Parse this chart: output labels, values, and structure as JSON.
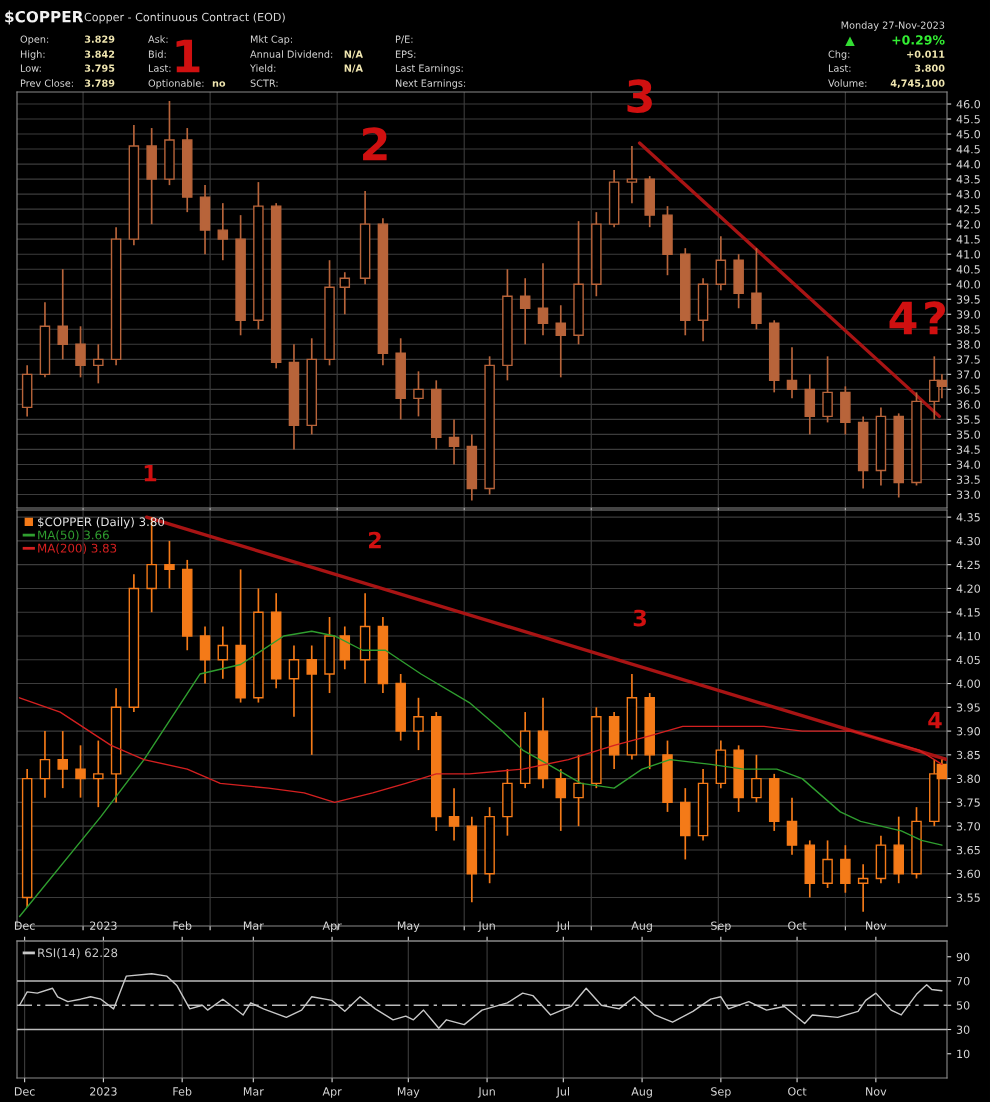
{
  "chart_data": [
    {
      "type": "other",
      "title": "$COPPER",
      "subtitle": "Copper - Continuous Contract (EOD)",
      "annotations": [
        "Open:",
        "3.829",
        "High:",
        "3.842",
        "Low:",
        "3.795",
        "Prev Close:",
        "3.789",
        "Ask:",
        "Bid:",
        "Last:",
        "Optionable:",
        "no",
        "Mkt Cap:",
        "Annual Dividend:",
        "N/A",
        "Yield:",
        "N/A",
        "SCTR:",
        "P/E:",
        "EPS:",
        "Last Earnings:",
        "Next Earnings:",
        "Monday 27-Nov-2023",
        "▲",
        "+0.29%",
        "Chg:",
        "+0.011",
        "Last:",
        "3.800",
        "Volume:",
        "4,745,100"
      ]
    },
    {
      "type": "candlestick",
      "xlim": [
        "2022-11-28",
        "2023-11-29"
      ],
      "ylim": [
        32.55,
        46.4
      ],
      "grid": true,
      "tick_labels": "y",
      "yticks": [
        {
          "value": 33.0,
          "label": "33.0"
        },
        {
          "value": 33.5,
          "label": "33.5"
        },
        {
          "value": 34.0,
          "label": "34.0"
        },
        {
          "value": 34.5,
          "label": "34.5"
        },
        {
          "value": 35.0,
          "label": "35.0"
        },
        {
          "value": 35.5,
          "label": "35.5"
        },
        {
          "value": 36.0,
          "label": "36.0"
        },
        {
          "value": 36.5,
          "label": "36.5"
        },
        {
          "value": 37.0,
          "label": "37.0"
        },
        {
          "value": 37.5,
          "label": "37.5"
        },
        {
          "value": 38.0,
          "label": "38.0"
        },
        {
          "value": 38.5,
          "label": "38.5"
        },
        {
          "value": 39.0,
          "label": "39.0"
        },
        {
          "value": 39.5,
          "label": "39.5"
        },
        {
          "value": 40.0,
          "label": "40.0"
        },
        {
          "value": 40.5,
          "label": "40.5"
        },
        {
          "value": 41.0,
          "label": "41.0"
        },
        {
          "value": 41.5,
          "label": "41.5"
        },
        {
          "value": 42.0,
          "label": "42.0"
        },
        {
          "value": 42.5,
          "label": "42.5"
        },
        {
          "value": 43.0,
          "label": "43.0"
        },
        {
          "value": 43.5,
          "label": "43.5"
        },
        {
          "value": 44.0,
          "label": "44.0"
        },
        {
          "value": 44.5,
          "label": "44.5"
        },
        {
          "value": 45.0,
          "label": "45.0"
        },
        {
          "value": 45.5,
          "label": "45.5"
        },
        {
          "value": 46.0,
          "label": "46.0"
        }
      ],
      "series": [
        {
          "type": "candlestick",
          "color": "#b8643a",
          "x": [
            "2022-12-02",
            "2022-12-09",
            "2022-12-16",
            "2022-12-23",
            "2022-12-30",
            "2023-01-06",
            "2023-01-13",
            "2023-01-20",
            "2023-01-27",
            "2023-02-03",
            "2023-02-10",
            "2023-02-17",
            "2023-02-24",
            "2023-03-03",
            "2023-03-10",
            "2023-03-17",
            "2023-03-24",
            "2023-03-31",
            "2023-04-06",
            "2023-04-14",
            "2023-04-21",
            "2023-04-28",
            "2023-05-05",
            "2023-05-12",
            "2023-05-19",
            "2023-05-26",
            "2023-06-02",
            "2023-06-09",
            "2023-06-16",
            "2023-06-23",
            "2023-06-30",
            "2023-07-07",
            "2023-07-14",
            "2023-07-21",
            "2023-07-28",
            "2023-08-04",
            "2023-08-11",
            "2023-08-18",
            "2023-08-25",
            "2023-09-01",
            "2023-09-08",
            "2023-09-15",
            "2023-09-22",
            "2023-09-29",
            "2023-10-06",
            "2023-10-13",
            "2023-10-20",
            "2023-10-27",
            "2023-11-03",
            "2023-11-10",
            "2023-11-17",
            "2023-11-24",
            "2023-11-27"
          ],
          "ohlc": [
            [
              35.9,
              37.3,
              35.6,
              37.0
            ],
            [
              37.0,
              39.4,
              36.9,
              38.6
            ],
            [
              38.6,
              40.5,
              37.5,
              38.0
            ],
            [
              38.0,
              38.6,
              36.9,
              37.3
            ],
            [
              37.3,
              38.0,
              36.7,
              37.5
            ],
            [
              37.5,
              41.9,
              37.3,
              41.5
            ],
            [
              41.5,
              45.3,
              41.3,
              44.6
            ],
            [
              44.6,
              45.2,
              42.0,
              43.5
            ],
            [
              43.5,
              46.1,
              43.3,
              44.8
            ],
            [
              44.8,
              45.2,
              42.4,
              42.9
            ],
            [
              42.9,
              43.3,
              41.0,
              41.8
            ],
            [
              41.8,
              42.7,
              40.8,
              41.5
            ],
            [
              41.5,
              42.3,
              38.3,
              38.8
            ],
            [
              38.8,
              43.4,
              38.5,
              42.6
            ],
            [
              42.6,
              42.7,
              37.2,
              37.4
            ],
            [
              37.4,
              38.0,
              34.5,
              35.3
            ],
            [
              35.3,
              38.2,
              35.0,
              37.5
            ],
            [
              37.5,
              40.8,
              37.3,
              39.9
            ],
            [
              39.9,
              40.4,
              39.0,
              40.2
            ],
            [
              40.2,
              43.1,
              40.0,
              42.0
            ],
            [
              42.0,
              42.2,
              37.3,
              37.7
            ],
            [
              37.7,
              38.2,
              35.5,
              36.2
            ],
            [
              36.2,
              37.1,
              35.6,
              36.5
            ],
            [
              36.5,
              36.8,
              34.5,
              34.9
            ],
            [
              34.9,
              35.5,
              34.0,
              34.6
            ],
            [
              34.6,
              35.0,
              32.8,
              33.2
            ],
            [
              33.2,
              37.6,
              33.0,
              37.3
            ],
            [
              37.3,
              40.5,
              36.8,
              39.6
            ],
            [
              39.6,
              40.2,
              38.0,
              39.2
            ],
            [
              39.2,
              40.7,
              38.3,
              38.7
            ],
            [
              38.7,
              39.3,
              36.9,
              38.3
            ],
            [
              38.3,
              42.1,
              38.0,
              40.0
            ],
            [
              40.0,
              42.4,
              39.6,
              42.0
            ],
            [
              42.0,
              43.8,
              41.9,
              43.4
            ],
            [
              43.4,
              44.6,
              42.7,
              43.5
            ],
            [
              43.5,
              43.6,
              41.9,
              42.3
            ],
            [
              42.3,
              42.6,
              40.3,
              41.0
            ],
            [
              41.0,
              41.2,
              38.3,
              38.8
            ],
            [
              38.8,
              40.2,
              38.1,
              40.0
            ],
            [
              40.0,
              41.6,
              39.8,
              40.8
            ],
            [
              40.8,
              41.0,
              39.2,
              39.7
            ],
            [
              39.7,
              41.2,
              38.5,
              38.7
            ],
            [
              38.7,
              38.8,
              36.4,
              36.8
            ],
            [
              36.8,
              37.9,
              36.2,
              36.5
            ],
            [
              36.5,
              37.0,
              35.0,
              35.6
            ],
            [
              35.6,
              37.6,
              35.4,
              36.4
            ],
            [
              36.4,
              36.6,
              35.0,
              35.4
            ],
            [
              35.4,
              35.6,
              33.2,
              33.8
            ],
            [
              33.8,
              35.9,
              33.3,
              35.6
            ],
            [
              35.6,
              35.7,
              32.9,
              33.4
            ],
            [
              33.4,
              36.4,
              33.3,
              36.1
            ],
            [
              36.1,
              37.6,
              35.5,
              36.8
            ],
            [
              36.8,
              37.0,
              36.2,
              36.6
            ]
          ]
        },
        {
          "type": "line",
          "color": "#a81414",
          "x": [
            "2023-07-31",
            "2023-11-26"
          ],
          "values": [
            44.7,
            35.6
          ]
        }
      ],
      "annotations": [
        "1",
        "2",
        "3",
        "4",
        "?"
      ]
    },
    {
      "type": "candlestick",
      "xlim": [
        "2022-11-28",
        "2023-11-29"
      ],
      "ylim": [
        3.49,
        4.365
      ],
      "grid": true,
      "tick_labels": "y",
      "legend": "top left",
      "yticks": [
        {
          "value": 3.55,
          "label": "3.55"
        },
        {
          "value": 3.6,
          "label": "3.60"
        },
        {
          "value": 3.65,
          "label": "3.65"
        },
        {
          "value": 3.7,
          "label": "3.70"
        },
        {
          "value": 3.75,
          "label": "3.75"
        },
        {
          "value": 3.8,
          "label": "3.80"
        },
        {
          "value": 3.85,
          "label": "3.85"
        },
        {
          "value": 3.9,
          "label": "3.90"
        },
        {
          "value": 3.95,
          "label": "3.95"
        },
        {
          "value": 4.0,
          "label": "4.00"
        },
        {
          "value": 4.05,
          "label": "4.05"
        },
        {
          "value": 4.1,
          "label": "4.10"
        },
        {
          "value": 4.15,
          "label": "4.15"
        },
        {
          "value": 4.2,
          "label": "4.20"
        },
        {
          "value": 4.25,
          "label": "4.25"
        },
        {
          "value": 4.3,
          "label": "4.30"
        },
        {
          "value": 4.35,
          "label": "4.35"
        }
      ],
      "series": [
        {
          "type": "candlestick",
          "name": "$COPPER (Daily) 3.80",
          "color": "#f47a18",
          "x": [
            "2022-12-02",
            "2022-12-09",
            "2022-12-16",
            "2022-12-23",
            "2022-12-30",
            "2023-01-06",
            "2023-01-13",
            "2023-01-20",
            "2023-01-27",
            "2023-02-03",
            "2023-02-10",
            "2023-02-17",
            "2023-02-24",
            "2023-03-03",
            "2023-03-10",
            "2023-03-17",
            "2023-03-24",
            "2023-03-31",
            "2023-04-06",
            "2023-04-14",
            "2023-04-21",
            "2023-04-28",
            "2023-05-05",
            "2023-05-12",
            "2023-05-19",
            "2023-05-26",
            "2023-06-02",
            "2023-06-09",
            "2023-06-16",
            "2023-06-23",
            "2023-06-30",
            "2023-07-07",
            "2023-07-14",
            "2023-07-21",
            "2023-07-28",
            "2023-08-04",
            "2023-08-11",
            "2023-08-18",
            "2023-08-25",
            "2023-09-01",
            "2023-09-08",
            "2023-09-15",
            "2023-09-22",
            "2023-09-29",
            "2023-10-06",
            "2023-10-13",
            "2023-10-20",
            "2023-10-27",
            "2023-11-03",
            "2023-11-10",
            "2023-11-17",
            "2023-11-24",
            "2023-11-27"
          ],
          "ohlc": [
            [
              3.55,
              3.82,
              3.53,
              3.8
            ],
            [
              3.8,
              3.9,
              3.76,
              3.84
            ],
            [
              3.84,
              3.9,
              3.78,
              3.82
            ],
            [
              3.82,
              3.87,
              3.76,
              3.8
            ],
            [
              3.8,
              3.88,
              3.74,
              3.81
            ],
            [
              3.81,
              3.99,
              3.75,
              3.95
            ],
            [
              3.95,
              4.23,
              3.94,
              4.2
            ],
            [
              4.2,
              4.35,
              4.15,
              4.25
            ],
            [
              4.25,
              4.3,
              4.2,
              4.24
            ],
            [
              4.24,
              4.26,
              4.07,
              4.1
            ],
            [
              4.1,
              4.12,
              4.0,
              4.05
            ],
            [
              4.05,
              4.12,
              4.01,
              4.08
            ],
            [
              4.08,
              4.24,
              3.96,
              3.97
            ],
            [
              3.97,
              4.2,
              3.96,
              4.15
            ],
            [
              4.15,
              4.19,
              3.99,
              4.01
            ],
            [
              4.01,
              4.08,
              3.93,
              4.05
            ],
            [
              4.05,
              4.08,
              3.85,
              4.02
            ],
            [
              4.02,
              4.14,
              3.98,
              4.1
            ],
            [
              4.1,
              4.12,
              4.03,
              4.05
            ],
            [
              4.05,
              4.19,
              4.0,
              4.12
            ],
            [
              4.12,
              4.14,
              3.98,
              4.0
            ],
            [
              4.0,
              4.02,
              3.88,
              3.9
            ],
            [
              3.9,
              3.97,
              3.86,
              3.93
            ],
            [
              3.93,
              3.94,
              3.69,
              3.72
            ],
            [
              3.72,
              3.78,
              3.67,
              3.7
            ],
            [
              3.7,
              3.72,
              3.54,
              3.6
            ],
            [
              3.6,
              3.74,
              3.58,
              3.72
            ],
            [
              3.72,
              3.82,
              3.68,
              3.79
            ],
            [
              3.79,
              3.94,
              3.78,
              3.9
            ],
            [
              3.9,
              3.97,
              3.78,
              3.8
            ],
            [
              3.8,
              3.82,
              3.69,
              3.76
            ],
            [
              3.76,
              3.85,
              3.7,
              3.79
            ],
            [
              3.79,
              3.95,
              3.78,
              3.93
            ],
            [
              3.93,
              3.94,
              3.82,
              3.85
            ],
            [
              3.85,
              4.02,
              3.84,
              3.97
            ],
            [
              3.97,
              3.98,
              3.82,
              3.85
            ],
            [
              3.85,
              3.88,
              3.73,
              3.75
            ],
            [
              3.75,
              3.78,
              3.63,
              3.68
            ],
            [
              3.68,
              3.82,
              3.67,
              3.79
            ],
            [
              3.79,
              3.88,
              3.78,
              3.86
            ],
            [
              3.86,
              3.87,
              3.73,
              3.76
            ],
            [
              3.76,
              3.85,
              3.75,
              3.8
            ],
            [
              3.8,
              3.81,
              3.69,
              3.71
            ],
            [
              3.71,
              3.76,
              3.64,
              3.66
            ],
            [
              3.66,
              3.67,
              3.55,
              3.58
            ],
            [
              3.58,
              3.67,
              3.57,
              3.63
            ],
            [
              3.63,
              3.66,
              3.56,
              3.58
            ],
            [
              3.58,
              3.62,
              3.52,
              3.59
            ],
            [
              3.59,
              3.68,
              3.58,
              3.66
            ],
            [
              3.66,
              3.72,
              3.58,
              3.6
            ],
            [
              3.6,
              3.74,
              3.59,
              3.71
            ],
            [
              3.71,
              3.84,
              3.7,
              3.81
            ],
            [
              3.83,
              3.84,
              3.8,
              3.8
            ]
          ]
        },
        {
          "type": "line",
          "name": "MA(50) 3.66",
          "color": "#2f9e2f",
          "x": [
            "2022-11-29",
            "2022-12-31",
            "2023-01-17",
            "2023-02-08",
            "2023-02-24",
            "2023-03-13",
            "2023-03-24",
            "2023-04-02",
            "2023-04-13",
            "2023-04-22",
            "2023-05-06",
            "2023-05-25",
            "2023-06-07",
            "2023-06-15",
            "2023-06-25",
            "2023-07-08",
            "2023-07-21",
            "2023-08-01",
            "2023-08-12",
            "2023-08-28",
            "2023-09-10",
            "2023-09-23",
            "2023-10-03",
            "2023-10-18",
            "2023-10-26",
            "2023-11-11",
            "2023-11-19",
            "2023-11-27"
          ],
          "values": [
            3.51,
            3.72,
            3.84,
            4.02,
            4.04,
            4.1,
            4.11,
            4.1,
            4.07,
            4.07,
            4.02,
            3.96,
            3.9,
            3.86,
            3.83,
            3.79,
            3.78,
            3.82,
            3.84,
            3.83,
            3.82,
            3.82,
            3.8,
            3.73,
            3.71,
            3.69,
            3.67,
            3.66
          ]
        },
        {
          "type": "line",
          "name": "MA(200) 3.83",
          "color": "#d42020",
          "x": [
            "2022-11-29",
            "2022-12-15",
            "2023-01-04",
            "2023-01-17",
            "2023-02-03",
            "2023-02-16",
            "2023-03-07",
            "2023-03-21",
            "2023-04-02",
            "2023-04-17",
            "2023-04-30",
            "2023-05-12",
            "2023-05-25",
            "2023-06-15",
            "2023-07-03",
            "2023-07-21",
            "2023-08-04",
            "2023-08-17",
            "2023-09-05",
            "2023-09-18",
            "2023-10-03",
            "2023-10-23",
            "2023-11-05",
            "2023-11-18",
            "2023-11-27"
          ],
          "values": [
            3.97,
            3.94,
            3.87,
            3.84,
            3.82,
            3.79,
            3.78,
            3.77,
            3.75,
            3.77,
            3.79,
            3.81,
            3.81,
            3.82,
            3.84,
            3.87,
            3.89,
            3.91,
            3.91,
            3.91,
            3.9,
            3.9,
            3.88,
            3.86,
            3.83
          ]
        },
        {
          "type": "line",
          "color": "#a81414",
          "x": [
            "2023-01-18",
            "2023-11-29"
          ],
          "values": [
            4.35,
            3.84
          ]
        }
      ],
      "annotations": [
        "1",
        "2",
        "3",
        "4"
      ]
    },
    {
      "type": "line",
      "xlim": [
        "2022-11-28",
        "2023-11-29"
      ],
      "x2lim": [
        "2022-11-28",
        "2023-11-29"
      ],
      "ylim": [
        -10,
        103
      ],
      "grid": "x",
      "legend": "top left",
      "yticks": [
        10,
        30,
        50,
        70,
        90
      ],
      "xticks": [
        {
          "value": "2022-12-01",
          "label": "Dec"
        },
        {
          "value": "2023-01-01",
          "label": "2023"
        },
        {
          "value": "2023-02-01",
          "label": "Feb"
        },
        {
          "value": "2023-03-01",
          "label": "Mar"
        },
        {
          "value": "2023-04-01",
          "label": "Apr"
        },
        {
          "value": "2023-05-01",
          "label": "May"
        },
        {
          "value": "2023-06-01",
          "label": "Jun"
        },
        {
          "value": "2023-07-01",
          "label": "Jul"
        },
        {
          "value": "2023-08-01",
          "label": "Aug"
        },
        {
          "value": "2023-09-01",
          "label": "Sep"
        },
        {
          "value": "2023-10-01",
          "label": "Oct"
        },
        {
          "value": "2023-11-01",
          "label": "Nov"
        }
      ],
      "x2ticks": [
        {
          "value": "2022-12-01",
          "label": "Dec"
        },
        {
          "value": "2023-01-01",
          "label": "2023"
        },
        {
          "value": "2023-02-01",
          "label": "Feb"
        },
        {
          "value": "2023-03-01",
          "label": "Mar"
        },
        {
          "value": "2023-04-01",
          "label": "Apr"
        },
        {
          "value": "2023-05-01",
          "label": "May"
        },
        {
          "value": "2023-06-01",
          "label": "Jun"
        },
        {
          "value": "2023-07-01",
          "label": "Jul"
        },
        {
          "value": "2023-08-01",
          "label": "Aug"
        },
        {
          "value": "2023-09-01",
          "label": "Sep"
        },
        {
          "value": "2023-10-01",
          "label": "Oct"
        },
        {
          "value": "2023-11-01",
          "label": "Nov"
        }
      ],
      "ref_lines": [
        {
          "axis": "y",
          "value": 70,
          "color": "#bbbbbb",
          "line_style": "solid"
        },
        {
          "axis": "y",
          "value": 50,
          "color": "#bbbbbb",
          "line_style": "dashed"
        },
        {
          "axis": "y",
          "value": 30,
          "color": "#bbbbbb",
          "line_style": "solid"
        }
      ],
      "series": [
        {
          "type": "line",
          "name": "RSI(14) 62.28",
          "color": "#c8c8c8",
          "x": [
            "2022-11-29",
            "2022-12-02",
            "2022-12-06",
            "2022-12-12",
            "2022-12-14",
            "2022-12-18",
            "2022-12-23",
            "2022-12-27",
            "2022-12-31",
            "2023-01-05",
            "2023-01-10",
            "2023-01-20",
            "2023-01-26",
            "2023-01-30",
            "2023-02-04",
            "2023-02-09",
            "2023-02-11",
            "2023-02-17",
            "2023-02-25",
            "2023-02-28",
            "2023-03-05",
            "2023-03-14",
            "2023-03-20",
            "2023-03-24",
            "2023-04-01",
            "2023-04-06",
            "2023-04-12",
            "2023-04-18",
            "2023-04-25",
            "2023-04-30",
            "2023-05-03",
            "2023-05-07",
            "2023-05-13",
            "2023-05-16",
            "2023-05-23",
            "2023-05-30",
            "2023-06-09",
            "2023-06-15",
            "2023-06-19",
            "2023-06-26",
            "2023-07-04",
            "2023-07-10",
            "2023-07-16",
            "2023-07-23",
            "2023-07-29",
            "2023-08-06",
            "2023-08-13",
            "2023-08-21",
            "2023-08-28",
            "2023-09-01",
            "2023-09-04",
            "2023-09-12",
            "2023-09-19",
            "2023-09-26",
            "2023-10-04",
            "2023-10-07",
            "2023-10-17",
            "2023-10-25",
            "2023-10-28",
            "2023-11-01",
            "2023-11-07",
            "2023-11-11",
            "2023-11-17",
            "2023-11-21",
            "2023-11-23",
            "2023-11-27"
          ],
          "values": [
            50,
            61,
            60,
            64,
            57,
            53,
            55,
            57,
            55,
            47,
            74,
            76,
            74,
            66,
            47,
            50,
            46,
            55,
            42,
            52,
            47,
            40,
            46,
            57,
            54,
            45,
            57,
            47,
            38,
            41,
            38,
            46,
            31,
            38,
            34,
            46,
            52,
            60,
            58,
            42,
            49,
            64,
            50,
            47,
            57,
            42,
            36,
            45,
            55,
            57,
            47,
            53,
            46,
            49,
            35,
            42,
            40,
            45,
            54,
            60,
            46,
            42,
            59,
            67,
            63,
            62
          ]
        }
      ]
    }
  ]
}
